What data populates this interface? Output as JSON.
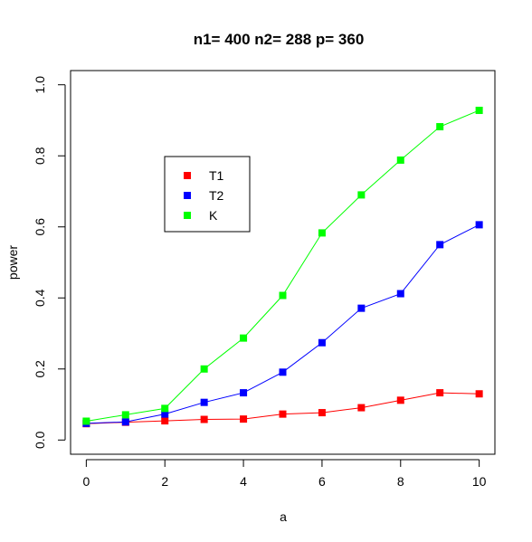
{
  "chart_data": {
    "type": "line",
    "title": "n1= 400 n2= 288 p= 360",
    "xlabel": "a",
    "ylabel": "power",
    "x": [
      0,
      1,
      2,
      3,
      4,
      5,
      6,
      7,
      8,
      9,
      10
    ],
    "xlim": [
      -0.4,
      10.4
    ],
    "ylim": [
      -0.04,
      1.04
    ],
    "xticks": [
      0,
      2,
      4,
      6,
      8,
      10
    ],
    "yticks": [
      0.0,
      0.2,
      0.4,
      0.6,
      0.8,
      1.0
    ],
    "xtick_labels": [
      "0",
      "2",
      "4",
      "6",
      "8",
      "10"
    ],
    "ytick_labels": [
      "0.0",
      "0.2",
      "0.4",
      "0.6",
      "0.8",
      "1.0"
    ],
    "grid": false,
    "legend_position": "upper-left",
    "series": [
      {
        "name": "T1",
        "color": "#ff0000",
        "values": [
          0.046,
          0.05,
          0.054,
          0.058,
          0.059,
          0.073,
          0.077,
          0.091,
          0.112,
          0.133,
          0.13
        ]
      },
      {
        "name": "T2",
        "color": "#0000ff",
        "values": [
          0.047,
          0.051,
          0.073,
          0.106,
          0.133,
          0.191,
          0.274,
          0.371,
          0.412,
          0.55,
          0.606
        ]
      },
      {
        "name": "K",
        "color": "#00ff00",
        "values": [
          0.053,
          0.071,
          0.089,
          0.2,
          0.287,
          0.407,
          0.583,
          0.69,
          0.788,
          0.882,
          0.928
        ]
      }
    ]
  }
}
